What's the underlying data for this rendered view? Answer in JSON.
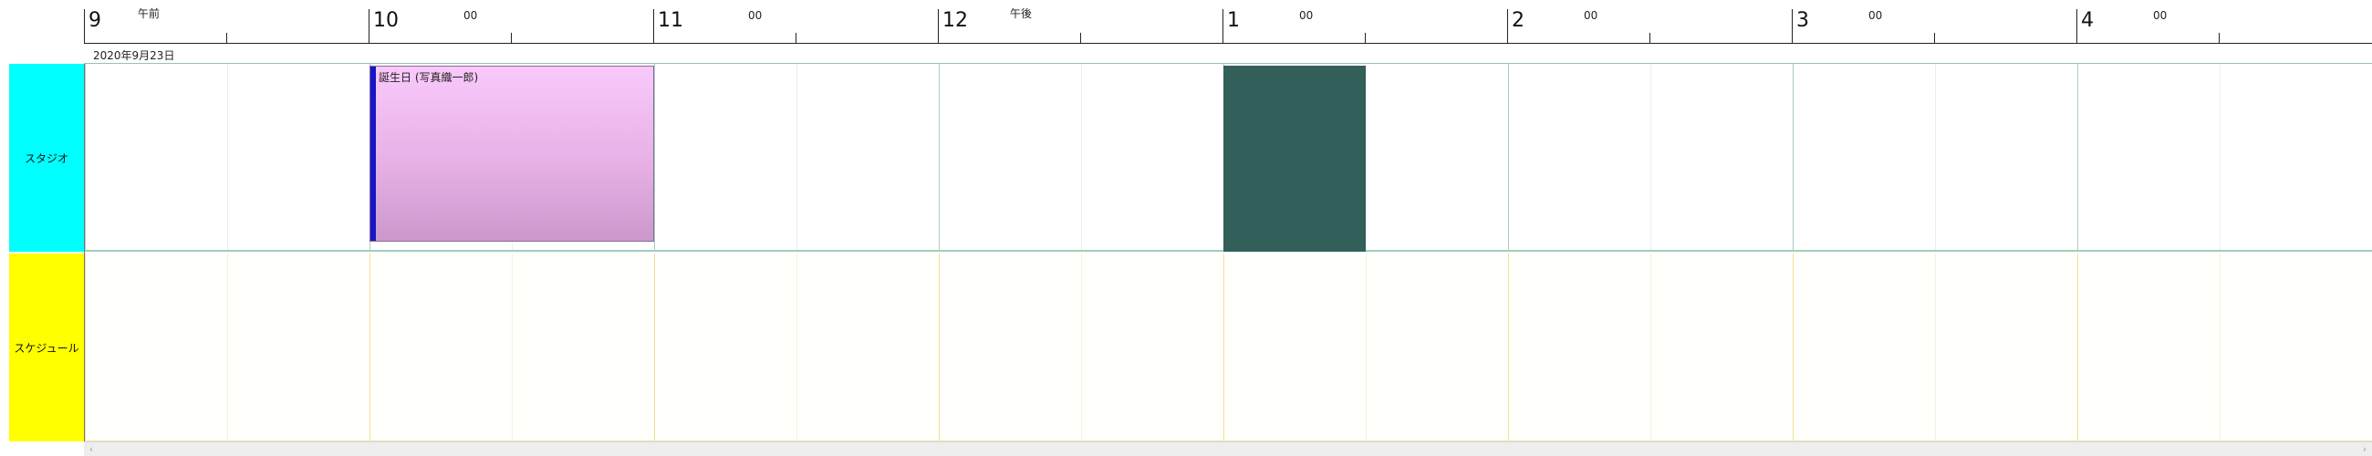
{
  "timeline": {
    "hours": [
      "9",
      "10",
      "11",
      "12",
      "1",
      "2",
      "3",
      "4"
    ],
    "am_label": "午前",
    "pm_label": "午後",
    "minute_label": "00",
    "date_label": "2020年9月23日"
  },
  "resources": [
    {
      "name": "スタジオ",
      "color": "#00ffff"
    },
    {
      "name": "スケジュール",
      "color": "#ffff00"
    }
  ],
  "events": [
    {
      "title": "誕生日 (写真織一郎)",
      "start": "10:00",
      "end": "11:00",
      "resource": "スタジオ",
      "color": "#f9c9fb",
      "accent": "#1616c9"
    }
  ],
  "blocked_period": {
    "start": "1:00",
    "end": "1:30",
    "resource": "スタジオ",
    "color": "#335f5b"
  },
  "scrollbar": {
    "left_icon": "chevron-left-icon",
    "right_icon": "chevron-right-icon",
    "left_glyph": "‹",
    "right_glyph": "›"
  }
}
